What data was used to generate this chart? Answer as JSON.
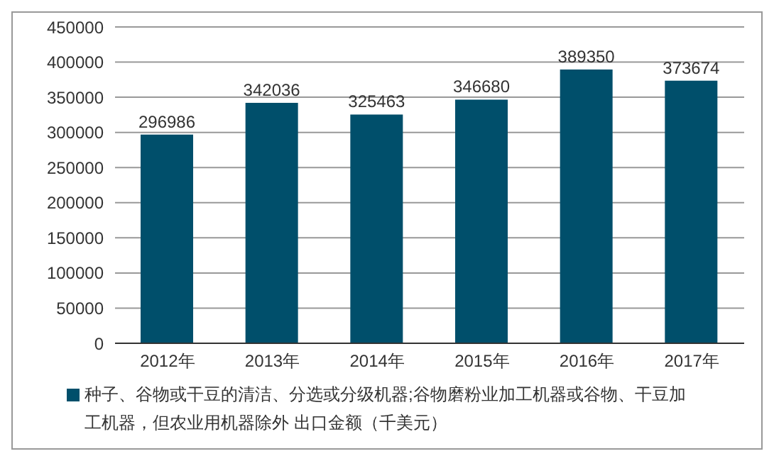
{
  "chart_data": {
    "type": "bar",
    "categories": [
      "2012年",
      "2013年",
      "2014年",
      "2015年",
      "2016年",
      "2017年"
    ],
    "series": [
      {
        "name": "种子、谷物或干豆的清洁、分选或分级机器;谷物磨粉业加工机器或谷物、干豆加工机器，但农业用机器除外 出口金额（千美元）",
        "color": "#004f6b",
        "values": [
          296986,
          342036,
          325463,
          346680,
          389350,
          373674
        ]
      }
    ],
    "ylim": [
      0,
      450000
    ],
    "yticks": [
      0,
      50000,
      100000,
      150000,
      200000,
      250000,
      300000,
      350000,
      400000,
      450000
    ],
    "grid": "y",
    "legend": "bottom",
    "data_labels": true
  }
}
